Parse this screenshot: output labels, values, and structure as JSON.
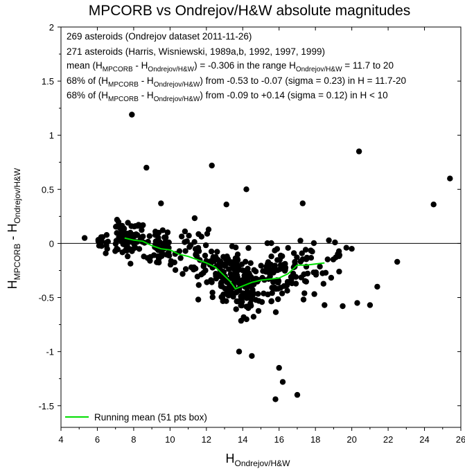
{
  "chart_data": {
    "type": "scatter",
    "title": "MPCORB vs Ondrejov/H&W absolute magnitudes",
    "xlabel": {
      "main": "H",
      "sub": "Ondrejov/H&W"
    },
    "ylabel": {
      "main": "H",
      "sub1": "MPCORB",
      "mid": " - H",
      "sub2": "Ondrejov/H&W"
    },
    "xlim": [
      4,
      26
    ],
    "ylim": [
      -1.7,
      2
    ],
    "xticks": [
      4,
      6,
      8,
      10,
      12,
      14,
      16,
      18,
      20,
      22,
      24,
      26
    ],
    "yticks": [
      -1.5,
      -1,
      -0.5,
      0,
      0.5,
      1,
      1.5,
      2
    ],
    "ytick_labels": [
      "-1.5",
      "-1",
      "-0.5",
      "0",
      "0.5",
      "1",
      "1.5",
      "2"
    ],
    "grid": false,
    "zero_line": 0,
    "annotations": {
      "line1": "269 asteroids (Ondrejov dataset 2011-11-26)",
      "line2": "271 asteroids (Harris, Wisniewski, 1989a,b, 1992, 1997, 1999)",
      "line3": {
        "a": "mean (H",
        "s1": "MPCORB",
        "b": " - H",
        "s2": "Ondrejov/H&W",
        "c": ") = -0.306 in the range H",
        "s3": "Ondrejov/H&W",
        "d": " = 11.7 to 20"
      },
      "line4": {
        "a": "68% of (H",
        "s1": "MPCORB",
        "b": " - H",
        "s2": "Ondrejov/H&W",
        "c": ") from -0.53 to -0.07 (sigma = 0.23) in H = 11.7-20"
      },
      "line5": {
        "a": "68% of (H",
        "s1": "MPCORB",
        "b": " - H",
        "s2": "Ondrejov/H&W",
        "c": ") from -0.09 to +0.14 (sigma = 0.12) in H < 10"
      }
    },
    "legend": {
      "placement": "bottom-left",
      "label": "Running mean (51 pts box)",
      "color": "#00dd00"
    },
    "point_color": "#000000",
    "running_mean": {
      "name": "Running mean (51 pts box)",
      "color": "#00dd00",
      "x": [
        7.5,
        8.0,
        8.5,
        9.0,
        9.5,
        10.0,
        10.5,
        11.0,
        11.5,
        12.0,
        12.5,
        13.0,
        13.3,
        13.6,
        13.9,
        14.2,
        14.5,
        15.0,
        15.5,
        16.0,
        16.5,
        17.0,
        17.5,
        18.0,
        18.5
      ],
      "y": [
        0.05,
        0.03,
        0.02,
        -0.02,
        -0.05,
        -0.06,
        -0.1,
        -0.12,
        -0.15,
        -0.18,
        -0.22,
        -0.3,
        -0.35,
        -0.42,
        -0.4,
        -0.38,
        -0.36,
        -0.34,
        -0.33,
        -0.32,
        -0.28,
        -0.2,
        -0.2,
        -0.19,
        -0.18
      ]
    },
    "outliers": [
      {
        "x": 7.9,
        "y": 1.19
      },
      {
        "x": 8.7,
        "y": 0.7
      },
      {
        "x": 12.3,
        "y": 0.72
      },
      {
        "x": 20.4,
        "y": 0.85
      },
      {
        "x": 25.4,
        "y": 0.6
      },
      {
        "x": 24.5,
        "y": 0.36
      },
      {
        "x": 14.2,
        "y": 0.5
      },
      {
        "x": 15.8,
        "y": -1.44
      },
      {
        "x": 16.2,
        "y": -1.28
      },
      {
        "x": 17.0,
        "y": -1.4
      },
      {
        "x": 16.0,
        "y": -1.15
      },
      {
        "x": 13.8,
        "y": -1.0
      },
      {
        "x": 14.5,
        "y": -1.04
      },
      {
        "x": 22.5,
        "y": -0.17
      },
      {
        "x": 21.4,
        "y": -0.4
      },
      {
        "x": 21.0,
        "y": -0.57
      },
      {
        "x": 20.3,
        "y": -0.55
      },
      {
        "x": 5.3,
        "y": 0.05
      },
      {
        "x": 19.5,
        "y": -0.58
      },
      {
        "x": 18.5,
        "y": -0.57
      },
      {
        "x": 9.5,
        "y": 0.37
      },
      {
        "x": 13.1,
        "y": 0.36
      },
      {
        "x": 17.3,
        "y": 0.37
      },
      {
        "x": 20.0,
        "y": -0.05
      },
      {
        "x": 19.7,
        "y": -0.04
      }
    ],
    "clusters": [
      {
        "x0": 6.0,
        "x1": 7.0,
        "y": 0.0,
        "sd": 0.06,
        "n": 14
      },
      {
        "x0": 7.0,
        "x1": 8.5,
        "y": 0.05,
        "sd": 0.12,
        "n": 70
      },
      {
        "x0": 8.5,
        "x1": 10.0,
        "y": 0.0,
        "sd": 0.14,
        "n": 45
      },
      {
        "x0": 10.0,
        "x1": 11.5,
        "y": -0.1,
        "sd": 0.16,
        "n": 28
      },
      {
        "x0": 11.5,
        "x1": 12.7,
        "y": -0.2,
        "sd": 0.2,
        "n": 38
      },
      {
        "x0": 12.7,
        "x1": 13.6,
        "y": -0.33,
        "sd": 0.18,
        "n": 75
      },
      {
        "x0": 13.6,
        "x1": 14.6,
        "y": -0.38,
        "sd": 0.2,
        "n": 95
      },
      {
        "x0": 14.6,
        "x1": 16.0,
        "y": -0.33,
        "sd": 0.2,
        "n": 55
      },
      {
        "x0": 16.0,
        "x1": 17.5,
        "y": -0.27,
        "sd": 0.18,
        "n": 45
      },
      {
        "x0": 17.5,
        "x1": 19.5,
        "y": -0.2,
        "sd": 0.16,
        "n": 25
      }
    ]
  }
}
